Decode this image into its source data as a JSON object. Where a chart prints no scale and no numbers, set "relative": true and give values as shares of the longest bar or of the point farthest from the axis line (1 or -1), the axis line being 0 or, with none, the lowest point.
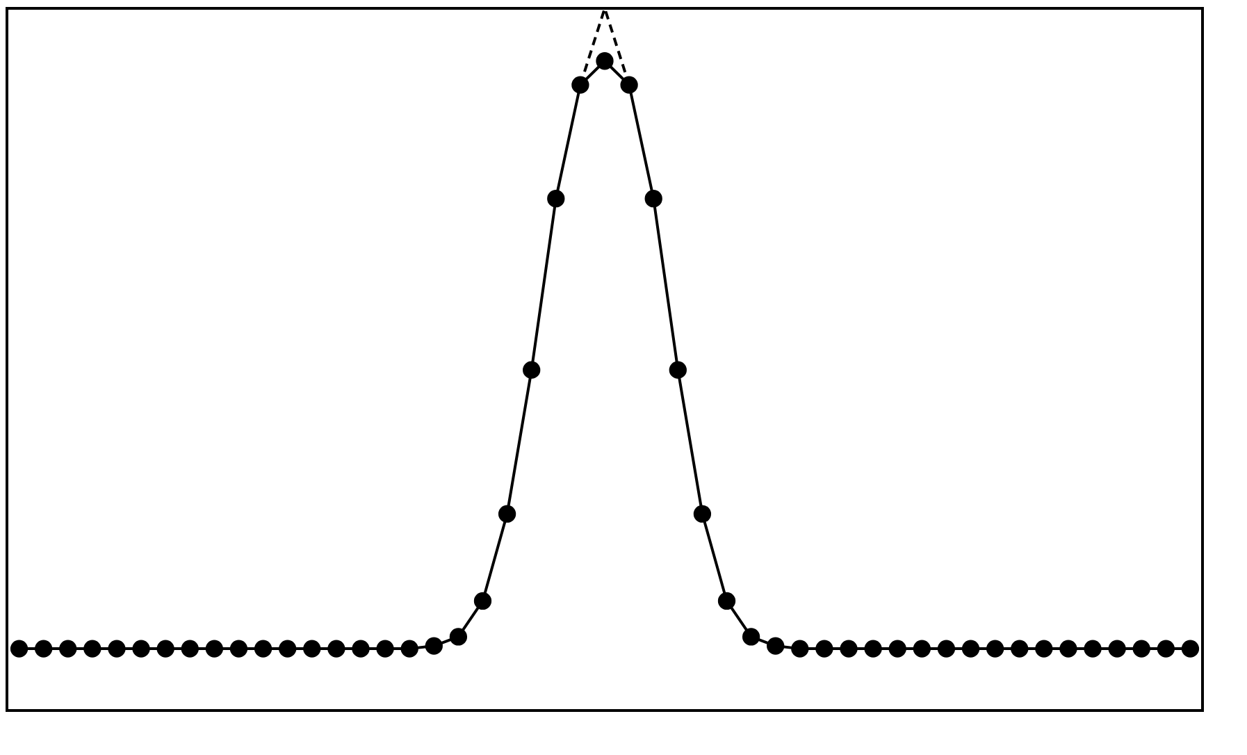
{
  "chart_data": {
    "type": "line",
    "relative": true,
    "tick_labels": false,
    "grid": false,
    "categories": [
      null,
      null,
      null,
      null,
      null,
      null,
      null,
      null,
      null,
      null,
      null,
      null,
      null,
      null,
      null,
      null,
      null,
      null,
      null,
      null,
      null,
      null,
      null,
      null,
      null,
      null,
      null,
      null,
      null,
      null,
      null,
      null,
      null,
      null,
      null,
      null,
      null,
      null,
      null,
      null,
      null,
      null,
      null,
      null,
      null,
      null,
      null,
      null,
      null
    ],
    "series": [
      {
        "color": "#000000",
        "marker": "circle",
        "line_style": "solid",
        "values": [
          0.088,
          0.088,
          0.088,
          0.088,
          0.088,
          0.088,
          0.088,
          0.088,
          0.088,
          0.088,
          0.088,
          0.088,
          0.088,
          0.088,
          0.088,
          0.088,
          0.088,
          0.092,
          0.105,
          0.156,
          0.28,
          0.485,
          0.729,
          0.891,
          0.925,
          0.891,
          0.729,
          0.485,
          0.28,
          0.156,
          0.105,
          0.092,
          0.088,
          0.088,
          0.088,
          0.088,
          0.088,
          0.088,
          0.088,
          0.088,
          0.088,
          0.088,
          0.088,
          0.088,
          0.088,
          0.088,
          0.088,
          0.088,
          0.088
        ]
      },
      {
        "color": "#000000",
        "marker": "none",
        "line_style": "dashed",
        "values": [
          null,
          null,
          null,
          null,
          null,
          null,
          null,
          null,
          null,
          null,
          null,
          null,
          null,
          null,
          null,
          null,
          null,
          null,
          null,
          null,
          null,
          null,
          null,
          0.891,
          1,
          0.891,
          null,
          null,
          null,
          null,
          null,
          null,
          null,
          null,
          null,
          null,
          null,
          null,
          null,
          null,
          null,
          null,
          null,
          null,
          null,
          null,
          null,
          null,
          null
        ]
      }
    ]
  }
}
